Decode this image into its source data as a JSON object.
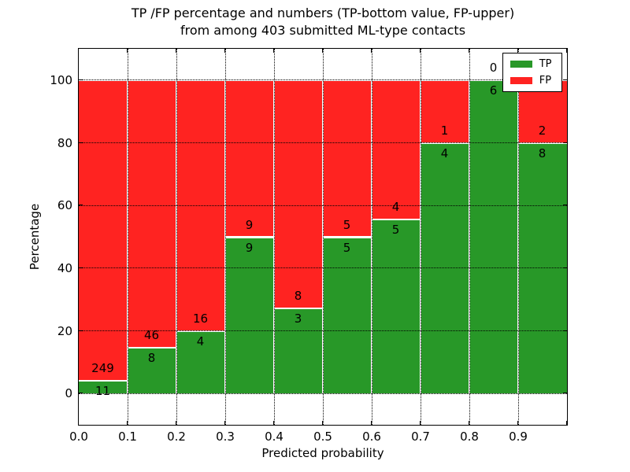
{
  "title": {
    "line1": "TP /FP percentage and numbers (TP-bottom value, FP-upper)",
    "line2": "from among 403 submitted ML-type contacts"
  },
  "axes": {
    "xlabel": "Predicted probability",
    "ylabel": "Percentage",
    "x_tick_labels": [
      "0.0",
      "0.1",
      "0.2",
      "0.3",
      "0.4",
      "0.5",
      "0.6",
      "0.7",
      "0.8",
      "0.9"
    ],
    "y_tick_labels": [
      "0",
      "20",
      "40",
      "60",
      "80",
      "100"
    ],
    "y_tick_values": [
      0,
      20,
      40,
      60,
      80,
      100
    ]
  },
  "legend": {
    "items": [
      {
        "label": "TP",
        "color_key": "tp"
      },
      {
        "label": "FP",
        "color_key": "fp"
      }
    ]
  },
  "colors": {
    "tp": "#289828",
    "fp": "#ff2321",
    "grid": "#000000",
    "background": "#ffffff"
  },
  "chart_data": {
    "type": "bar",
    "stacked": true,
    "normalized_to_percent": true,
    "title": "TP /FP percentage and numbers (TP-bottom value, FP-upper) from among 403 submitted ML-type contacts",
    "xlabel": "Predicted probability",
    "ylabel": "Percentage",
    "total_contacts": 403,
    "bin_edges": [
      0.0,
      0.1,
      0.2,
      0.3,
      0.4,
      0.5,
      0.6,
      0.7,
      0.8,
      0.9,
      1.0
    ],
    "categories": [
      "0.0-0.1",
      "0.1-0.2",
      "0.2-0.3",
      "0.3-0.4",
      "0.4-0.5",
      "0.5-0.6",
      "0.6-0.7",
      "0.7-0.8",
      "0.8-0.9",
      "0.9-1.0"
    ],
    "series": [
      {
        "name": "TP",
        "counts": [
          11,
          8,
          4,
          9,
          3,
          5,
          5,
          4,
          6,
          8
        ],
        "percent": [
          4.231,
          14.815,
          20.0,
          50.0,
          27.273,
          50.0,
          55.556,
          80.0,
          100.0,
          80.0
        ]
      },
      {
        "name": "FP",
        "counts": [
          249,
          46,
          16,
          9,
          8,
          5,
          4,
          1,
          0,
          2
        ],
        "percent": [
          95.769,
          85.185,
          80.0,
          50.0,
          72.727,
          50.0,
          44.444,
          20.0,
          0.0,
          20.0
        ]
      }
    ],
    "xlim": [
      0.0,
      1.0
    ],
    "ylim": [
      -10,
      110
    ],
    "grid": "dotted",
    "legend_position": "upper right"
  }
}
